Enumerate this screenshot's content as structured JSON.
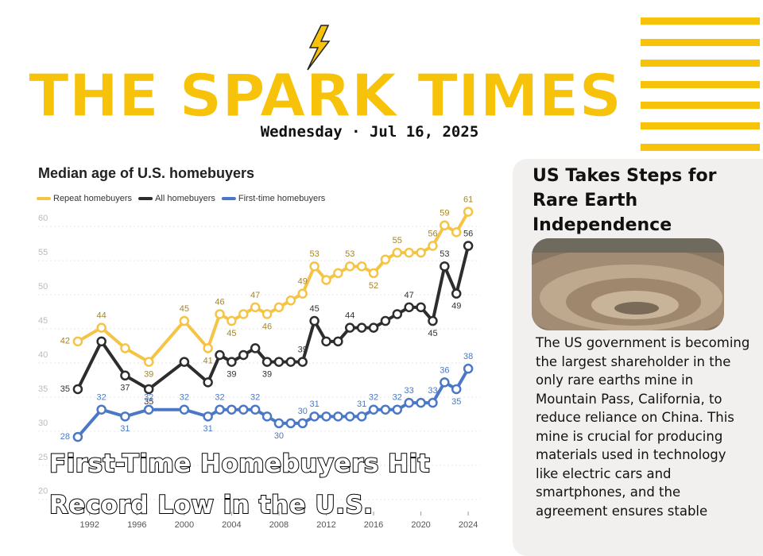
{
  "header": {
    "title": "THE SPARK TIMES",
    "date": "Wednesday · Jul 16, 2025"
  },
  "chart_data": {
    "type": "line",
    "title": "Median age of U.S. homebuyers",
    "x": [
      1991,
      1993,
      1995,
      1997,
      2000,
      2002,
      2003,
      2004,
      2005,
      2006,
      2007,
      2008,
      2009,
      2010,
      2011,
      2012,
      2013,
      2014,
      2015,
      2016,
      2017,
      2018,
      2019,
      2020,
      2021,
      2022,
      2023,
      2024
    ],
    "series": [
      {
        "name": "Repeat homebuyers",
        "color": "#f6c444",
        "values": [
          42,
          44,
          41,
          39,
          45,
          41,
          46,
          45,
          46,
          47,
          46,
          47,
          48,
          49,
          53,
          51,
          52,
          53,
          53,
          52,
          54,
          55,
          55,
          55,
          56,
          59,
          58,
          61
        ],
        "value_labels": [
          "42",
          "44",
          null,
          "39",
          "45",
          "41",
          "46",
          "45",
          null,
          "47",
          "46",
          null,
          null,
          "49",
          "53",
          null,
          null,
          "53",
          null,
          "52",
          null,
          "55",
          null,
          null,
          "56",
          "59",
          null,
          "61"
        ]
      },
      {
        "name": "All homebuyers",
        "color": "#2d2d2d",
        "values": [
          35,
          42,
          37,
          35,
          39,
          36,
          40,
          39,
          40,
          41,
          39,
          39,
          39,
          39,
          45,
          42,
          42,
          44,
          44,
          44,
          45,
          46,
          47,
          47,
          45,
          53,
          49,
          56
        ],
        "value_labels": [
          "35",
          null,
          "37",
          "35",
          null,
          null,
          null,
          "39",
          null,
          null,
          "39",
          null,
          null,
          "39",
          "45",
          null,
          null,
          "44",
          null,
          null,
          null,
          null,
          "47",
          null,
          "45",
          "53",
          "49",
          "56"
        ]
      },
      {
        "name": "First-time homebuyers",
        "color": "#4a78c6",
        "values": [
          28,
          32,
          31,
          32,
          32,
          31,
          32,
          32,
          32,
          32,
          31,
          30,
          30,
          30,
          31,
          31,
          31,
          31,
          31,
          32,
          32,
          32,
          33,
          33,
          33,
          36,
          35,
          38
        ],
        "value_labels": [
          "28",
          "32",
          "31",
          "32",
          "32",
          "31",
          "32",
          null,
          null,
          "32",
          null,
          "30",
          null,
          "30",
          "31",
          null,
          null,
          null,
          "31",
          "32",
          null,
          "32",
          "33",
          null,
          "33",
          "36",
          "35",
          "38"
        ]
      }
    ],
    "xlim": [
      1990,
      2025
    ],
    "xticks": [
      1992,
      1996,
      2000,
      2004,
      2008,
      2012,
      2016,
      2020,
      2024
    ],
    "ylim": [
      18,
      62
    ],
    "yticks": [
      20,
      25,
      30,
      35,
      40,
      45,
      50,
      55,
      60
    ],
    "grid": true,
    "legend": "top-left"
  },
  "headline": "First-Time Homebuyers Hit Record Low in the U.S.",
  "article": {
    "title": "US Takes Steps for Rare Earth Independence",
    "body": "The US government is becoming the largest shareholder in the only rare earths mine in Mountain Pass, California, to reduce reliance on China. This mine is crucial for producing materials used in technology like electric cars and smartphones, and the agreement ensures stable"
  }
}
